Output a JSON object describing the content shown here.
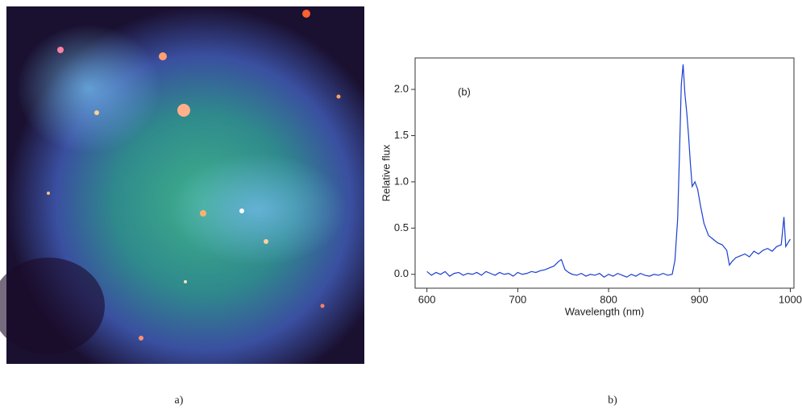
{
  "chart_data": {
    "type": "line",
    "annotation": "(b)",
    "x_label": "Wavelength (nm)",
    "y_label": "Relative flux",
    "color": "#1a3fd0",
    "x": [
      600,
      605,
      610,
      615,
      620,
      625,
      630,
      635,
      640,
      645,
      650,
      655,
      660,
      665,
      670,
      675,
      680,
      685,
      690,
      695,
      700,
      705,
      710,
      715,
      720,
      725,
      730,
      735,
      740,
      745,
      748,
      752,
      756,
      760,
      765,
      770,
      775,
      780,
      785,
      790,
      795,
      800,
      805,
      810,
      815,
      820,
      825,
      830,
      835,
      840,
      845,
      850,
      855,
      860,
      865,
      870,
      873,
      876,
      878,
      880,
      882,
      884,
      886,
      888,
      890,
      892,
      895,
      898,
      901,
      905,
      910,
      915,
      920,
      925,
      930,
      933,
      936,
      940,
      945,
      950,
      955,
      960,
      965,
      970,
      975,
      980,
      985,
      990,
      993,
      995,
      998,
      1000
    ],
    "values": [
      0.03,
      -0.01,
      0.02,
      0.0,
      0.03,
      -0.02,
      0.01,
      0.02,
      -0.01,
      0.01,
      0.0,
      0.02,
      -0.01,
      0.03,
      0.01,
      -0.01,
      0.02,
      0.0,
      0.01,
      -0.02,
      0.02,
      0.0,
      0.01,
      0.03,
      0.02,
      0.04,
      0.05,
      0.07,
      0.09,
      0.14,
      0.16,
      0.05,
      0.02,
      0.0,
      -0.01,
      0.01,
      -0.02,
      0.0,
      -0.01,
      0.01,
      -0.03,
      0.0,
      -0.02,
      0.01,
      -0.01,
      -0.03,
      0.0,
      -0.02,
      0.01,
      -0.01,
      -0.02,
      0.0,
      -0.01,
      0.01,
      -0.01,
      0.0,
      0.15,
      0.6,
      1.3,
      2.05,
      2.27,
      1.95,
      1.75,
      1.5,
      1.2,
      0.95,
      1.0,
      0.92,
      0.75,
      0.55,
      0.42,
      0.38,
      0.34,
      0.32,
      0.26,
      0.1,
      0.14,
      0.18,
      0.2,
      0.22,
      0.19,
      0.25,
      0.22,
      0.26,
      0.28,
      0.25,
      0.3,
      0.32,
      0.62,
      0.3,
      0.35,
      0.38
    ],
    "xlim": [
      587,
      1004
    ],
    "ylim": [
      -0.15,
      2.34
    ],
    "xticks": [
      600,
      700,
      800,
      900,
      1000
    ],
    "yticks": [
      {
        "value": 0,
        "label": "0.0"
      },
      0.5,
      {
        "value": 1,
        "label": "1.0"
      },
      1.5,
      {
        "value": 2,
        "label": "2.0"
      }
    ]
  },
  "captions": [
    "a)",
    "b)"
  ]
}
